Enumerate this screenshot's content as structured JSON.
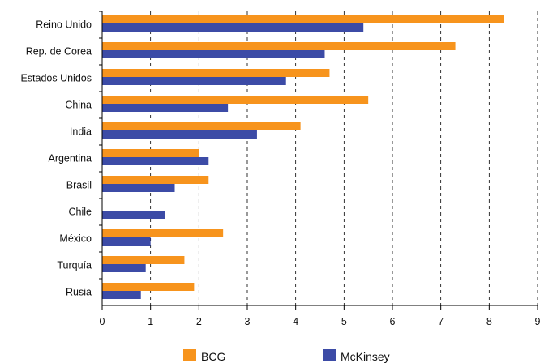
{
  "chart_data": {
    "type": "bar",
    "orientation": "horizontal",
    "categories": [
      "Reino Unido",
      "Rep. de Corea",
      "Estados Unidos",
      "China",
      "India",
      "Argentina",
      "Brasil",
      "Chile",
      "México",
      "Turquía",
      "Rusia"
    ],
    "series": [
      {
        "name": "BCG",
        "color": "#F7941D",
        "values": [
          8.3,
          7.3,
          4.7,
          5.5,
          4.1,
          2.0,
          2.2,
          null,
          2.5,
          1.7,
          1.9
        ]
      },
      {
        "name": "McKinsey",
        "color": "#3C4BA6",
        "values": [
          5.4,
          4.6,
          3.8,
          2.6,
          3.2,
          2.2,
          1.5,
          1.3,
          1.0,
          0.9,
          0.8
        ]
      }
    ],
    "xlim": [
      0,
      9
    ],
    "xticks": [
      0,
      1,
      2,
      3,
      4,
      5,
      6,
      7,
      8,
      9
    ],
    "grid": "vertical-dashed",
    "legend": "bottom"
  }
}
